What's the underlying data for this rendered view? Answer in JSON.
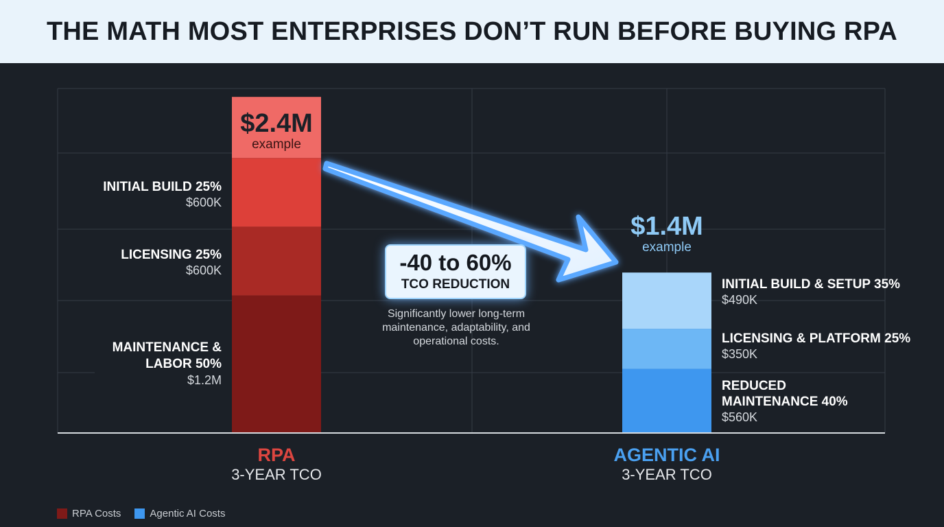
{
  "title": "THE MATH MOST ENTERPRISES DON’T RUN BEFORE BUYING RPA",
  "chart_data": {
    "type": "bar",
    "stacked": true,
    "categories": [
      {
        "name": "RPA",
        "subtitle": "3-YEAR TCO"
      },
      {
        "name": "AGENTIC AI",
        "subtitle": "3-YEAR TCO"
      }
    ],
    "totals": [
      {
        "value": "$2.4M",
        "note": "example",
        "amount_m": 2.4
      },
      {
        "value": "$1.4M",
        "note": "example",
        "amount_m": 1.4
      }
    ],
    "series": [
      {
        "name": "RPA Costs",
        "stack": "RPA",
        "segments": [
          {
            "label": "INITIAL BUILD 25%",
            "value_text": "$600K",
            "value_m": 0.6,
            "color": "#dd4039"
          },
          {
            "label": "LICENSING 25%",
            "value_text": "$600K",
            "value_m": 0.6,
            "color": "#a92a25"
          },
          {
            "label": "MAINTENANCE & LABOR 50%",
            "value_text": "$1.2M",
            "value_m": 1.2,
            "color": "#7e1a18"
          }
        ]
      },
      {
        "name": "Agentic AI Costs",
        "stack": "AGENTIC AI",
        "segments": [
          {
            "label": "INITIAL BUILD & SETUP 35%",
            "value_text": "$490K",
            "value_m": 0.49,
            "color": "#a9d6fa"
          },
          {
            "label": "LICENSING & PLATFORM 25%",
            "value_text": "$350K",
            "value_m": 0.35,
            "color": "#6db7f5"
          },
          {
            "label": "REDUCED MAINTENANCE 40%",
            "value_text": "$560K",
            "value_m": 0.56,
            "color": "#3e97ef"
          }
        ]
      }
    ],
    "rpa_total_color": "#ef6a66",
    "annotation": {
      "headline": "-40 to 60%",
      "subhead": "TCO REDUCTION",
      "description": "Significantly lower long-term maintenance, adaptability, and operational costs."
    },
    "legend": [
      {
        "label": "RPA Costs",
        "color": "#7e1a18"
      },
      {
        "label": "Agentic AI Costs",
        "color": "#3e97ef"
      }
    ],
    "legend_position": "bottom-left",
    "grid": true
  }
}
